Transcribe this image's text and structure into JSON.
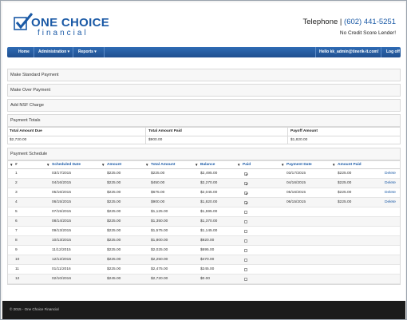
{
  "brand": {
    "logo_line1": "ONE CHOICE",
    "logo_line2": "financial",
    "phone_label": "Telephone |",
    "phone_number": "(602) 441-5251",
    "tagline": "No Credit Score Lender!",
    "primary_color": "#1b5aa6"
  },
  "nav": {
    "items": [
      {
        "label": "Home"
      },
      {
        "label": "Administration ▾"
      },
      {
        "label": "Reports ▾"
      }
    ],
    "user": "Hello kk_admin@tinerik-it.com!",
    "logoff": "Log off"
  },
  "sections": [
    {
      "label": "Make Standard Payment"
    },
    {
      "label": "Make Over Payment"
    },
    {
      "label": "Add NSF Charge"
    },
    {
      "label": "Payment Totals"
    }
  ],
  "totals": {
    "headers": [
      "Total Amount Due",
      "Total Amount Paid",
      "Payoff Amount"
    ],
    "values": [
      "$2,720.00",
      "$900.00",
      "$1,820.00"
    ]
  },
  "schedule": {
    "title": "Payment Schedule",
    "filter_icon": "filter-icon",
    "headers": [
      "#",
      "Scheduled Date",
      "Amount",
      "Total Amount",
      "Balance",
      "Paid",
      "Payment Date",
      "Amount Paid"
    ],
    "rows": [
      {
        "num": "1",
        "date": "03/17/2015",
        "amount": "$225.00",
        "total": "$225.00",
        "balance": "$2,495.00",
        "paid": true,
        "pay_date": "03/17/2015",
        "amount_paid": "$225.00",
        "action": "Delete"
      },
      {
        "num": "2",
        "date": "04/16/2015",
        "amount": "$225.00",
        "total": "$450.00",
        "balance": "$2,270.00",
        "paid": true,
        "pay_date": "04/16/2015",
        "amount_paid": "$225.00",
        "action": "Delete"
      },
      {
        "num": "3",
        "date": "05/16/2015",
        "amount": "$225.00",
        "total": "$675.00",
        "balance": "$2,045.00",
        "paid": true,
        "pay_date": "05/16/2015",
        "amount_paid": "$225.00",
        "action": "Delete"
      },
      {
        "num": "4",
        "date": "06/15/2015",
        "amount": "$225.00",
        "total": "$900.00",
        "balance": "$1,820.00",
        "paid": true,
        "pay_date": "06/15/2015",
        "amount_paid": "$225.00",
        "action": "Delete"
      },
      {
        "num": "5",
        "date": "07/15/2015",
        "amount": "$225.00",
        "total": "$1,125.00",
        "balance": "$1,595.00",
        "paid": false,
        "pay_date": "",
        "amount_paid": "",
        "action": ""
      },
      {
        "num": "6",
        "date": "08/14/2015",
        "amount": "$225.00",
        "total": "$1,350.00",
        "balance": "$1,370.00",
        "paid": false,
        "pay_date": "",
        "amount_paid": "",
        "action": ""
      },
      {
        "num": "7",
        "date": "09/13/2015",
        "amount": "$225.00",
        "total": "$1,575.00",
        "balance": "$1,145.00",
        "paid": false,
        "pay_date": "",
        "amount_paid": "",
        "action": ""
      },
      {
        "num": "8",
        "date": "10/13/2015",
        "amount": "$225.00",
        "total": "$1,800.00",
        "balance": "$920.00",
        "paid": false,
        "pay_date": "",
        "amount_paid": "",
        "action": ""
      },
      {
        "num": "9",
        "date": "11/12/2015",
        "amount": "$225.00",
        "total": "$2,025.00",
        "balance": "$695.00",
        "paid": false,
        "pay_date": "",
        "amount_paid": "",
        "action": ""
      },
      {
        "num": "10",
        "date": "12/12/2015",
        "amount": "$225.00",
        "total": "$2,250.00",
        "balance": "$470.00",
        "paid": false,
        "pay_date": "",
        "amount_paid": "",
        "action": ""
      },
      {
        "num": "11",
        "date": "01/11/2016",
        "amount": "$225.00",
        "total": "$2,475.00",
        "balance": "$245.00",
        "paid": false,
        "pay_date": "",
        "amount_paid": "",
        "action": ""
      },
      {
        "num": "12",
        "date": "02/10/2016",
        "amount": "$245.00",
        "total": "$2,720.00",
        "balance": "$0.00",
        "paid": false,
        "pay_date": "",
        "amount_paid": "",
        "action": ""
      }
    ]
  },
  "footer": {
    "text": "© 2015 - One Choice Financial"
  }
}
